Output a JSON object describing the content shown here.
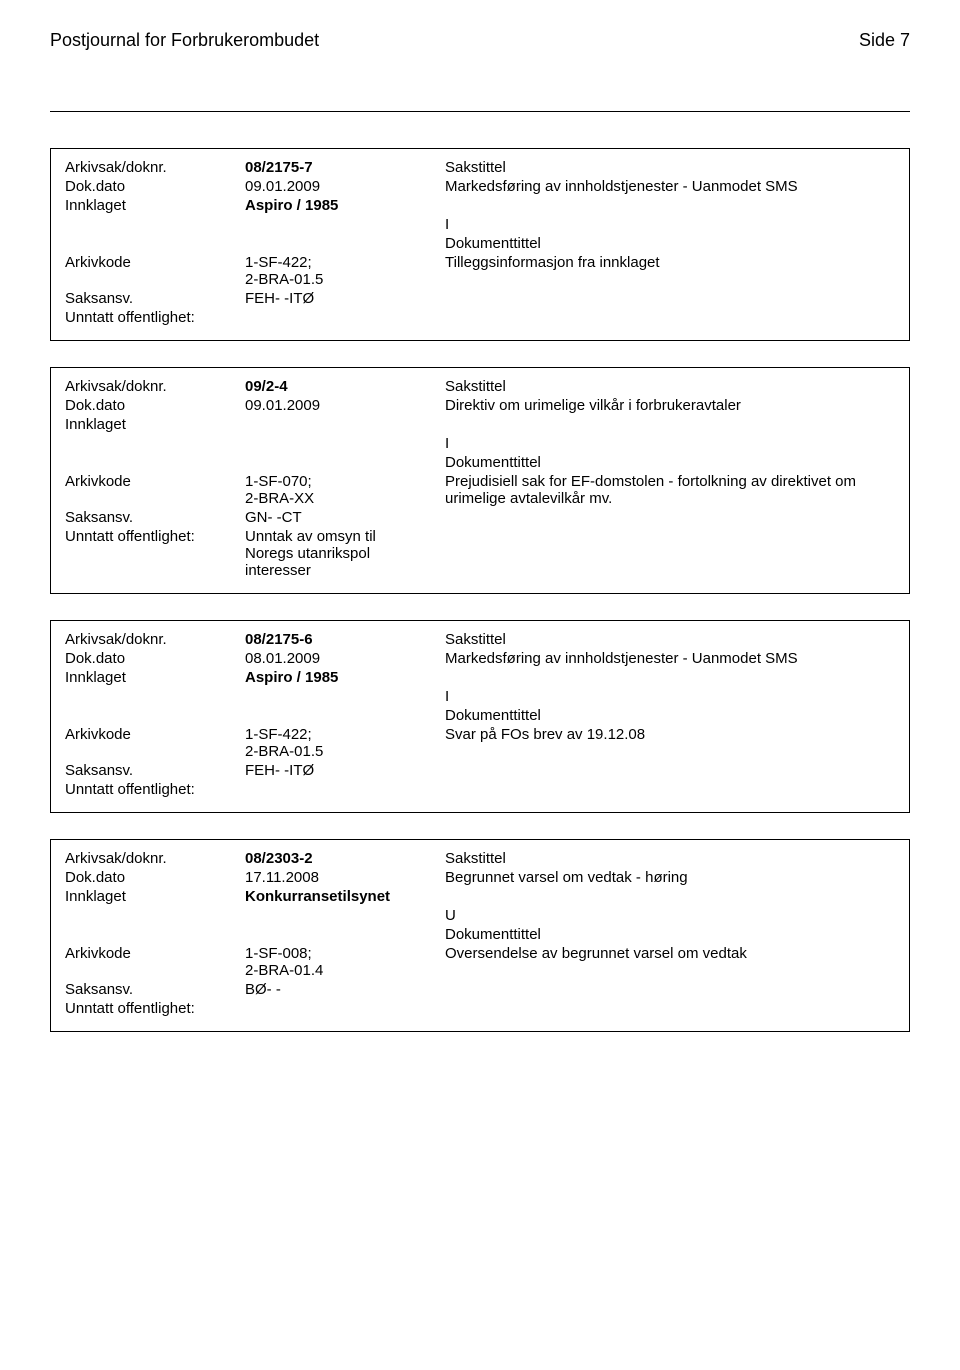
{
  "header": {
    "title": "Postjournal for Forbrukerombudet",
    "pageNum": "Side 7"
  },
  "labels": {
    "arkivsak": "Arkivsak/doknr.",
    "dokdato": "Dok.dato",
    "innklaget": "Innklaget",
    "arkivkode": "Arkivkode",
    "saksansv": "Saksansv.",
    "unntatt": "Unntatt offentlighet:",
    "sakstittel": "Sakstittel",
    "dokumenttittel": "Dokumenttittel"
  },
  "records": [
    {
      "arkivsak": "08/2175-7",
      "dokdato": "09.01.2009",
      "sakstittel": "Markedsføring av innholdstjenester - Uanmodet SMS",
      "innklaget": "Aspiro / 1985",
      "io": "I",
      "arkivkode": "1-SF-422;\n2-BRA-01.5",
      "doktittel": "Tilleggsinformasjon fra innklaget",
      "saksansv": "FEH- -ITØ",
      "unntatt": ""
    },
    {
      "arkivsak": "09/2-4",
      "dokdato": "09.01.2009",
      "sakstittel": "Direktiv om urimelige vilkår i forbrukeravtaler",
      "innklaget": "",
      "io": "I",
      "arkivkode": "1-SF-070;\n2-BRA-XX",
      "doktittel": "Prejudisiell sak for EF-domstolen - fortolkning av direktivet om urimelige avtalevilkår mv.",
      "saksansv": "GN- -CT",
      "unntatt": "Unntak av omsyn til\nNoregs utanrikspol\ninteresser"
    },
    {
      "arkivsak": "08/2175-6",
      "dokdato": "08.01.2009",
      "sakstittel": "Markedsføring av innholdstjenester - Uanmodet SMS",
      "innklaget": "Aspiro / 1985",
      "io": "I",
      "arkivkode": "1-SF-422;\n2-BRA-01.5",
      "doktittel": "Svar på FOs brev av 19.12.08",
      "saksansv": "FEH- -ITØ",
      "unntatt": ""
    },
    {
      "arkivsak": "08/2303-2",
      "dokdato": "17.11.2008",
      "sakstittel": "Begrunnet varsel om vedtak - høring",
      "innklaget": "Konkurransetilsynet",
      "io": "U",
      "arkivkode": "1-SF-008;\n2-BRA-01.4",
      "doktittel": "Oversendelse av begrunnet varsel om vedtak",
      "saksansv": "BØ- -",
      "unntatt": ""
    }
  ]
}
